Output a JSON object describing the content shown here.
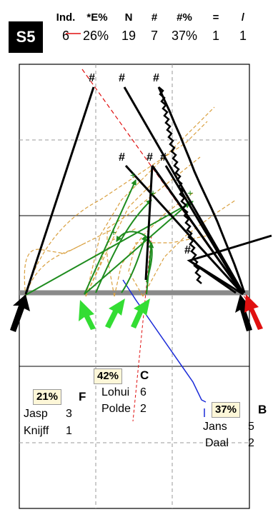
{
  "set_label": "S5",
  "stats": {
    "headers": [
      "Ind.",
      "*E%",
      "N",
      "#",
      "#%",
      "=",
      "/"
    ],
    "values": [
      "6",
      "26%",
      "19",
      "7",
      "37%",
      "1",
      "1"
    ]
  },
  "zones": [
    {
      "letter": "F",
      "pct": "21%",
      "players": [
        {
          "name": "Jasp",
          "count": "3"
        },
        {
          "name": "Knijff",
          "count": "1"
        }
      ]
    },
    {
      "letter": "C",
      "pct": "42%",
      "players": [
        {
          "name": "Lohui",
          "count": "6"
        },
        {
          "name": "Polde",
          "count": "2"
        }
      ]
    },
    {
      "letter": "B",
      "pct": "37%",
      "players": [
        {
          "name": "Jans",
          "count": "5"
        },
        {
          "name": "Daal",
          "count": "2"
        }
      ]
    }
  ],
  "marker_symbol": "#",
  "plus_symbol": "+",
  "colors": {
    "black": "#000000",
    "green": "#1e8c1e",
    "bright_green": "#33dd33",
    "orange_dash": "#d9a040",
    "red": "#e01010",
    "blue": "#1a2ad8",
    "net": "#8a8a8a"
  }
}
